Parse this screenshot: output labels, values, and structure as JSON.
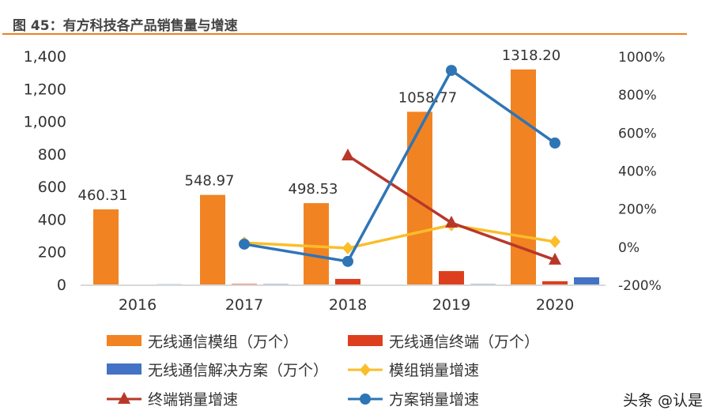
{
  "title": "图 45：有方科技各产品销售量与增速",
  "watermark": "头条 @认是",
  "chart_data": {
    "type": "bar+line",
    "categories": [
      "2016",
      "2017",
      "2018",
      "2019",
      "2020"
    ],
    "left_axis": {
      "ylim": [
        0,
        1400
      ],
      "ticks": [
        "0",
        "200",
        "400",
        "600",
        "800",
        "1,000",
        "1,200",
        "1,400"
      ]
    },
    "right_axis": {
      "ylim": [
        -200,
        1000
      ],
      "ticks": [
        "-200%",
        "0%",
        "200%",
        "400%",
        "600%",
        "800%",
        "1000%"
      ]
    },
    "series": [
      {
        "name": "无线通信模组（万个）",
        "kind": "bar",
        "axis": "left",
        "color": "#f28322",
        "values": [
          460.31,
          548.97,
          498.53,
          1058.77,
          1318.2
        ],
        "labels": [
          "460.31",
          "548.97",
          "498.53",
          "1058.77",
          "1318.20"
        ]
      },
      {
        "name": "无线通信终端（万个）",
        "kind": "bar",
        "axis": "left",
        "color": "#dd3f1e",
        "values": [
          null,
          3,
          34,
          82,
          20
        ]
      },
      {
        "name": "无线通信解决方案（万个）",
        "kind": "bar",
        "axis": "left",
        "color": "#4472c4",
        "values": [
          1,
          2,
          null,
          2,
          44
        ]
      },
      {
        "name": "模组销量增速",
        "kind": "line",
        "axis": "right",
        "marker": "diamond",
        "color": "#fbbd2b",
        "values": [
          null,
          19.3,
          -9.2,
          112.4,
          24.5
        ]
      },
      {
        "name": "终端销量增速",
        "kind": "line",
        "axis": "right",
        "marker": "triangle",
        "color": "#b7382a",
        "values": [
          null,
          null,
          477,
          124,
          -71
        ]
      },
      {
        "name": "方案销量增速",
        "kind": "line",
        "axis": "right",
        "marker": "circle",
        "color": "#2e75b6",
        "values": [
          null,
          12,
          -79,
          925,
          543
        ]
      }
    ],
    "legend": "bottom"
  }
}
